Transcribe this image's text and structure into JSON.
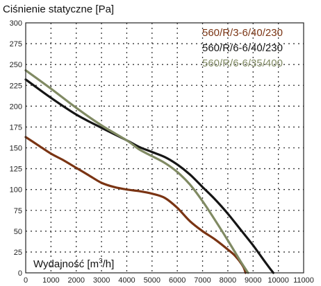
{
  "chart_data": {
    "type": "line",
    "title": "Ciśnienie statyczne [Pa]",
    "xlabel_text": "Wydajność [m",
    "xlabel_sup": "3",
    "xlabel_end": "/h]",
    "xlim": [
      0,
      11000
    ],
    "ylim": [
      0,
      300
    ],
    "x_ticks": [
      0,
      1000,
      2000,
      3000,
      4000,
      5000,
      6000,
      7000,
      8000,
      9000,
      10000,
      11000
    ],
    "y_ticks": [
      0,
      25,
      50,
      75,
      100,
      125,
      150,
      175,
      200,
      225,
      250,
      275,
      300
    ],
    "grid": true,
    "legend_position": "top-right",
    "series": [
      {
        "name": "560/R/3-6/40/230",
        "color": "#7a3413",
        "x": [
          0,
          500,
          1000,
          1500,
          2000,
          2500,
          3000,
          3500,
          4000,
          4500,
          5000,
          5500,
          6000,
          6500,
          7000,
          7500,
          8000,
          8300,
          8600,
          8700
        ],
        "y": [
          163,
          153,
          143,
          135,
          126,
          117,
          108,
          103,
          100,
          98,
          95,
          90,
          78,
          62,
          50,
          40,
          28,
          20,
          8,
          0
        ]
      },
      {
        "name": "560/R/6-6/40/230",
        "color": "#151515",
        "x": [
          0,
          1000,
          2000,
          3000,
          4000,
          4500,
          5000,
          5500,
          6000,
          6500,
          7000,
          7500,
          8000,
          8500,
          9000,
          9500,
          9800
        ],
        "y": [
          232,
          210,
          190,
          174,
          159,
          151,
          145,
          139,
          130,
          118,
          103,
          88,
          71,
          52,
          33,
          12,
          0
        ]
      },
      {
        "name": "560/R/6-6/35/400",
        "color": "#808a63",
        "x": [
          0,
          1000,
          2000,
          3000,
          4000,
          4500,
          5000,
          5500,
          6000,
          6500,
          7000,
          7500,
          8000,
          8500,
          8800
        ],
        "y": [
          243,
          221,
          198,
          177,
          159,
          148,
          140,
          132,
          121,
          106,
          86,
          63,
          39,
          14,
          0
        ]
      }
    ]
  }
}
